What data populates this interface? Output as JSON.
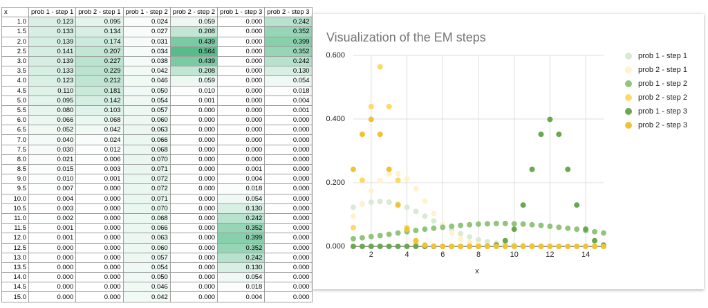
{
  "table": {
    "header": [
      "x",
      "prob 1 - step 1",
      "prob 2 - step 1",
      "prob 1 - step 2",
      "prob 2 - step 2",
      "prob 1 - step 3",
      "prob 2 - step 3"
    ],
    "rows": [
      [
        "1.0",
        "0.123",
        "0.095",
        "0.024",
        "0.059",
        "0.000",
        "0.242"
      ],
      [
        "1.5",
        "0.133",
        "0.134",
        "0.027",
        "0.208",
        "0.000",
        "0.352"
      ],
      [
        "2.0",
        "0.139",
        "0.174",
        "0.031",
        "0.439",
        "0.000",
        "0.399"
      ],
      [
        "2.5",
        "0.141",
        "0.207",
        "0.034",
        "0.564",
        "0.000",
        "0.352"
      ],
      [
        "3.0",
        "0.139",
        "0.227",
        "0.038",
        "0.439",
        "0.000",
        "0.242"
      ],
      [
        "3.5",
        "0.133",
        "0.229",
        "0.042",
        "0.208",
        "0.000",
        "0.130"
      ],
      [
        "4.0",
        "0.123",
        "0.212",
        "0.046",
        "0.059",
        "0.000",
        "0.054"
      ],
      [
        "4.5",
        "0.110",
        "0.181",
        "0.050",
        "0.010",
        "0.000",
        "0.018"
      ],
      [
        "5.0",
        "0.095",
        "0.142",
        "0.054",
        "0.001",
        "0.000",
        "0.004"
      ],
      [
        "5.5",
        "0.080",
        "0.103",
        "0.057",
        "0.000",
        "0.000",
        "0.001"
      ],
      [
        "6.0",
        "0.066",
        "0.068",
        "0.060",
        "0.000",
        "0.000",
        "0.000"
      ],
      [
        "6.5",
        "0.052",
        "0.042",
        "0.063",
        "0.000",
        "0.000",
        "0.000"
      ],
      [
        "7.0",
        "0.040",
        "0.024",
        "0.066",
        "0.000",
        "0.000",
        "0.000"
      ],
      [
        "7.5",
        "0.030",
        "0.012",
        "0.068",
        "0.000",
        "0.000",
        "0.000"
      ],
      [
        "8.0",
        "0.021",
        "0.006",
        "0.070",
        "0.000",
        "0.000",
        "0.000"
      ],
      [
        "8.5",
        "0.015",
        "0.003",
        "0.071",
        "0.000",
        "0.001",
        "0.000"
      ],
      [
        "9.0",
        "0.010",
        "0.001",
        "0.072",
        "0.000",
        "0.004",
        "0.000"
      ],
      [
        "9.5",
        "0.007",
        "0.000",
        "0.072",
        "0.000",
        "0.018",
        "0.000"
      ],
      [
        "10.0",
        "0.004",
        "0.000",
        "0.071",
        "0.000",
        "0.054",
        "0.000"
      ],
      [
        "10.5",
        "0.003",
        "0.000",
        "0.070",
        "0.000",
        "0.130",
        "0.000"
      ],
      [
        "11.0",
        "0.002",
        "0.000",
        "0.068",
        "0.000",
        "0.242",
        "0.000"
      ],
      [
        "11.5",
        "0.001",
        "0.000",
        "0.066",
        "0.000",
        "0.352",
        "0.000"
      ],
      [
        "12.0",
        "0.001",
        "0.000",
        "0.063",
        "0.000",
        "0.399",
        "0.000"
      ],
      [
        "12.5",
        "0.000",
        "0.000",
        "0.060",
        "0.000",
        "0.352",
        "0.000"
      ],
      [
        "13.0",
        "0.000",
        "0.000",
        "0.057",
        "0.000",
        "0.242",
        "0.000"
      ],
      [
        "13.5",
        "0.000",
        "0.000",
        "0.054",
        "0.000",
        "0.130",
        "0.000"
      ],
      [
        "14.0",
        "0.000",
        "0.000",
        "0.050",
        "0.000",
        "0.054",
        "0.000"
      ],
      [
        "14.5",
        "0.000",
        "0.000",
        "0.046",
        "0.000",
        "0.018",
        "0.000"
      ],
      [
        "15.0",
        "0.000",
        "0.000",
        "0.042",
        "0.000",
        "0.004",
        "0.000"
      ]
    ]
  },
  "chart": {
    "type": "scatter",
    "title": "Visualization of the EM steps",
    "x_label": "x",
    "xlim": [
      1,
      15
    ],
    "xticks": [
      2,
      4,
      6,
      8,
      10,
      12,
      14
    ],
    "ylim": [
      0,
      0.6
    ],
    "yticks": [
      {
        "value": 0,
        "label": "0.000"
      },
      {
        "value": 0.2,
        "label": "0.200"
      },
      {
        "value": 0.4,
        "label": "0.400"
      },
      {
        "value": 0.6,
        "label": "0.600"
      }
    ],
    "grid": true,
    "legend": "right",
    "series": [
      {
        "name": "prob 1 - step 1",
        "color": "#d9ead3"
      },
      {
        "name": "prob 2 - step 1",
        "color": "#fff2cc"
      },
      {
        "name": "prob 1 - step 2",
        "color": "#93c47d"
      },
      {
        "name": "prob 2 - step 2",
        "color": "#ffd966"
      },
      {
        "name": "prob 1 - step 3",
        "color": "#6aa84f"
      },
      {
        "name": "prob 2 - step 3",
        "color": "#f1c232"
      }
    ]
  }
}
